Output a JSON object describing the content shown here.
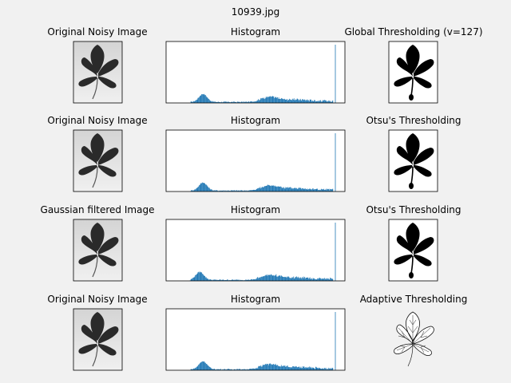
{
  "figure": {
    "suptitle": "10939.jpg",
    "rows": [
      {
        "left_title": "Original Noisy Image",
        "middle_title": "Histogram",
        "right_title": "Global Thresholding (v=127)",
        "left_kind": "gray",
        "right_kind": "binary"
      },
      {
        "left_title": "Original Noisy Image",
        "middle_title": "Histogram",
        "right_title": "Otsu's Thresholding",
        "left_kind": "gray",
        "right_kind": "binary"
      },
      {
        "left_title": "Gaussian filtered Image",
        "middle_title": "Histogram",
        "right_title": "Otsu's Thresholding",
        "left_kind": "gray",
        "right_kind": "binary"
      },
      {
        "left_title": "Original Noisy Image",
        "middle_title": "Histogram",
        "right_title": "Adaptive Thresholding",
        "left_kind": "gray",
        "right_kind": "adaptive"
      }
    ]
  },
  "colors": {
    "figure_background": "#f1f1f1",
    "histogram_bar": "#1f77b4",
    "leaf_dark": "#2a2a2a",
    "image_background_top": "#d4d4d4",
    "image_background_bottom": "#f0f0f0"
  }
}
